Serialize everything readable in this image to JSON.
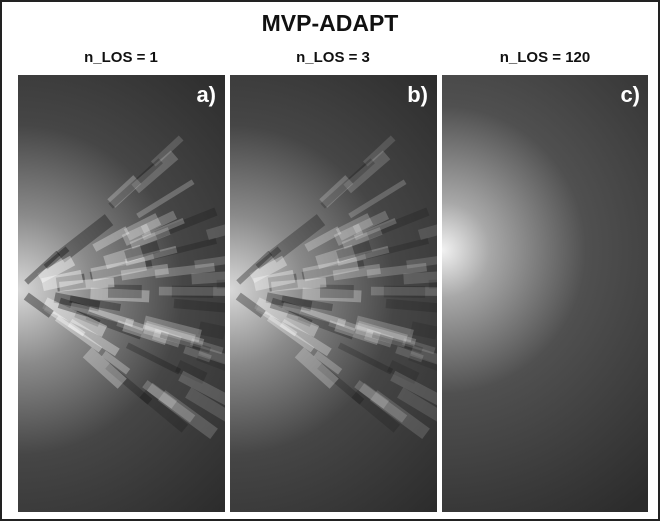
{
  "figure": {
    "title": "MVP-ADAPT",
    "panels": [
      {
        "header": "n_LOS = 1",
        "tag": "a)"
      },
      {
        "header": "n_LOS = 3",
        "tag": "b)"
      },
      {
        "header": "n_LOS = 120",
        "tag": "c)"
      }
    ]
  }
}
